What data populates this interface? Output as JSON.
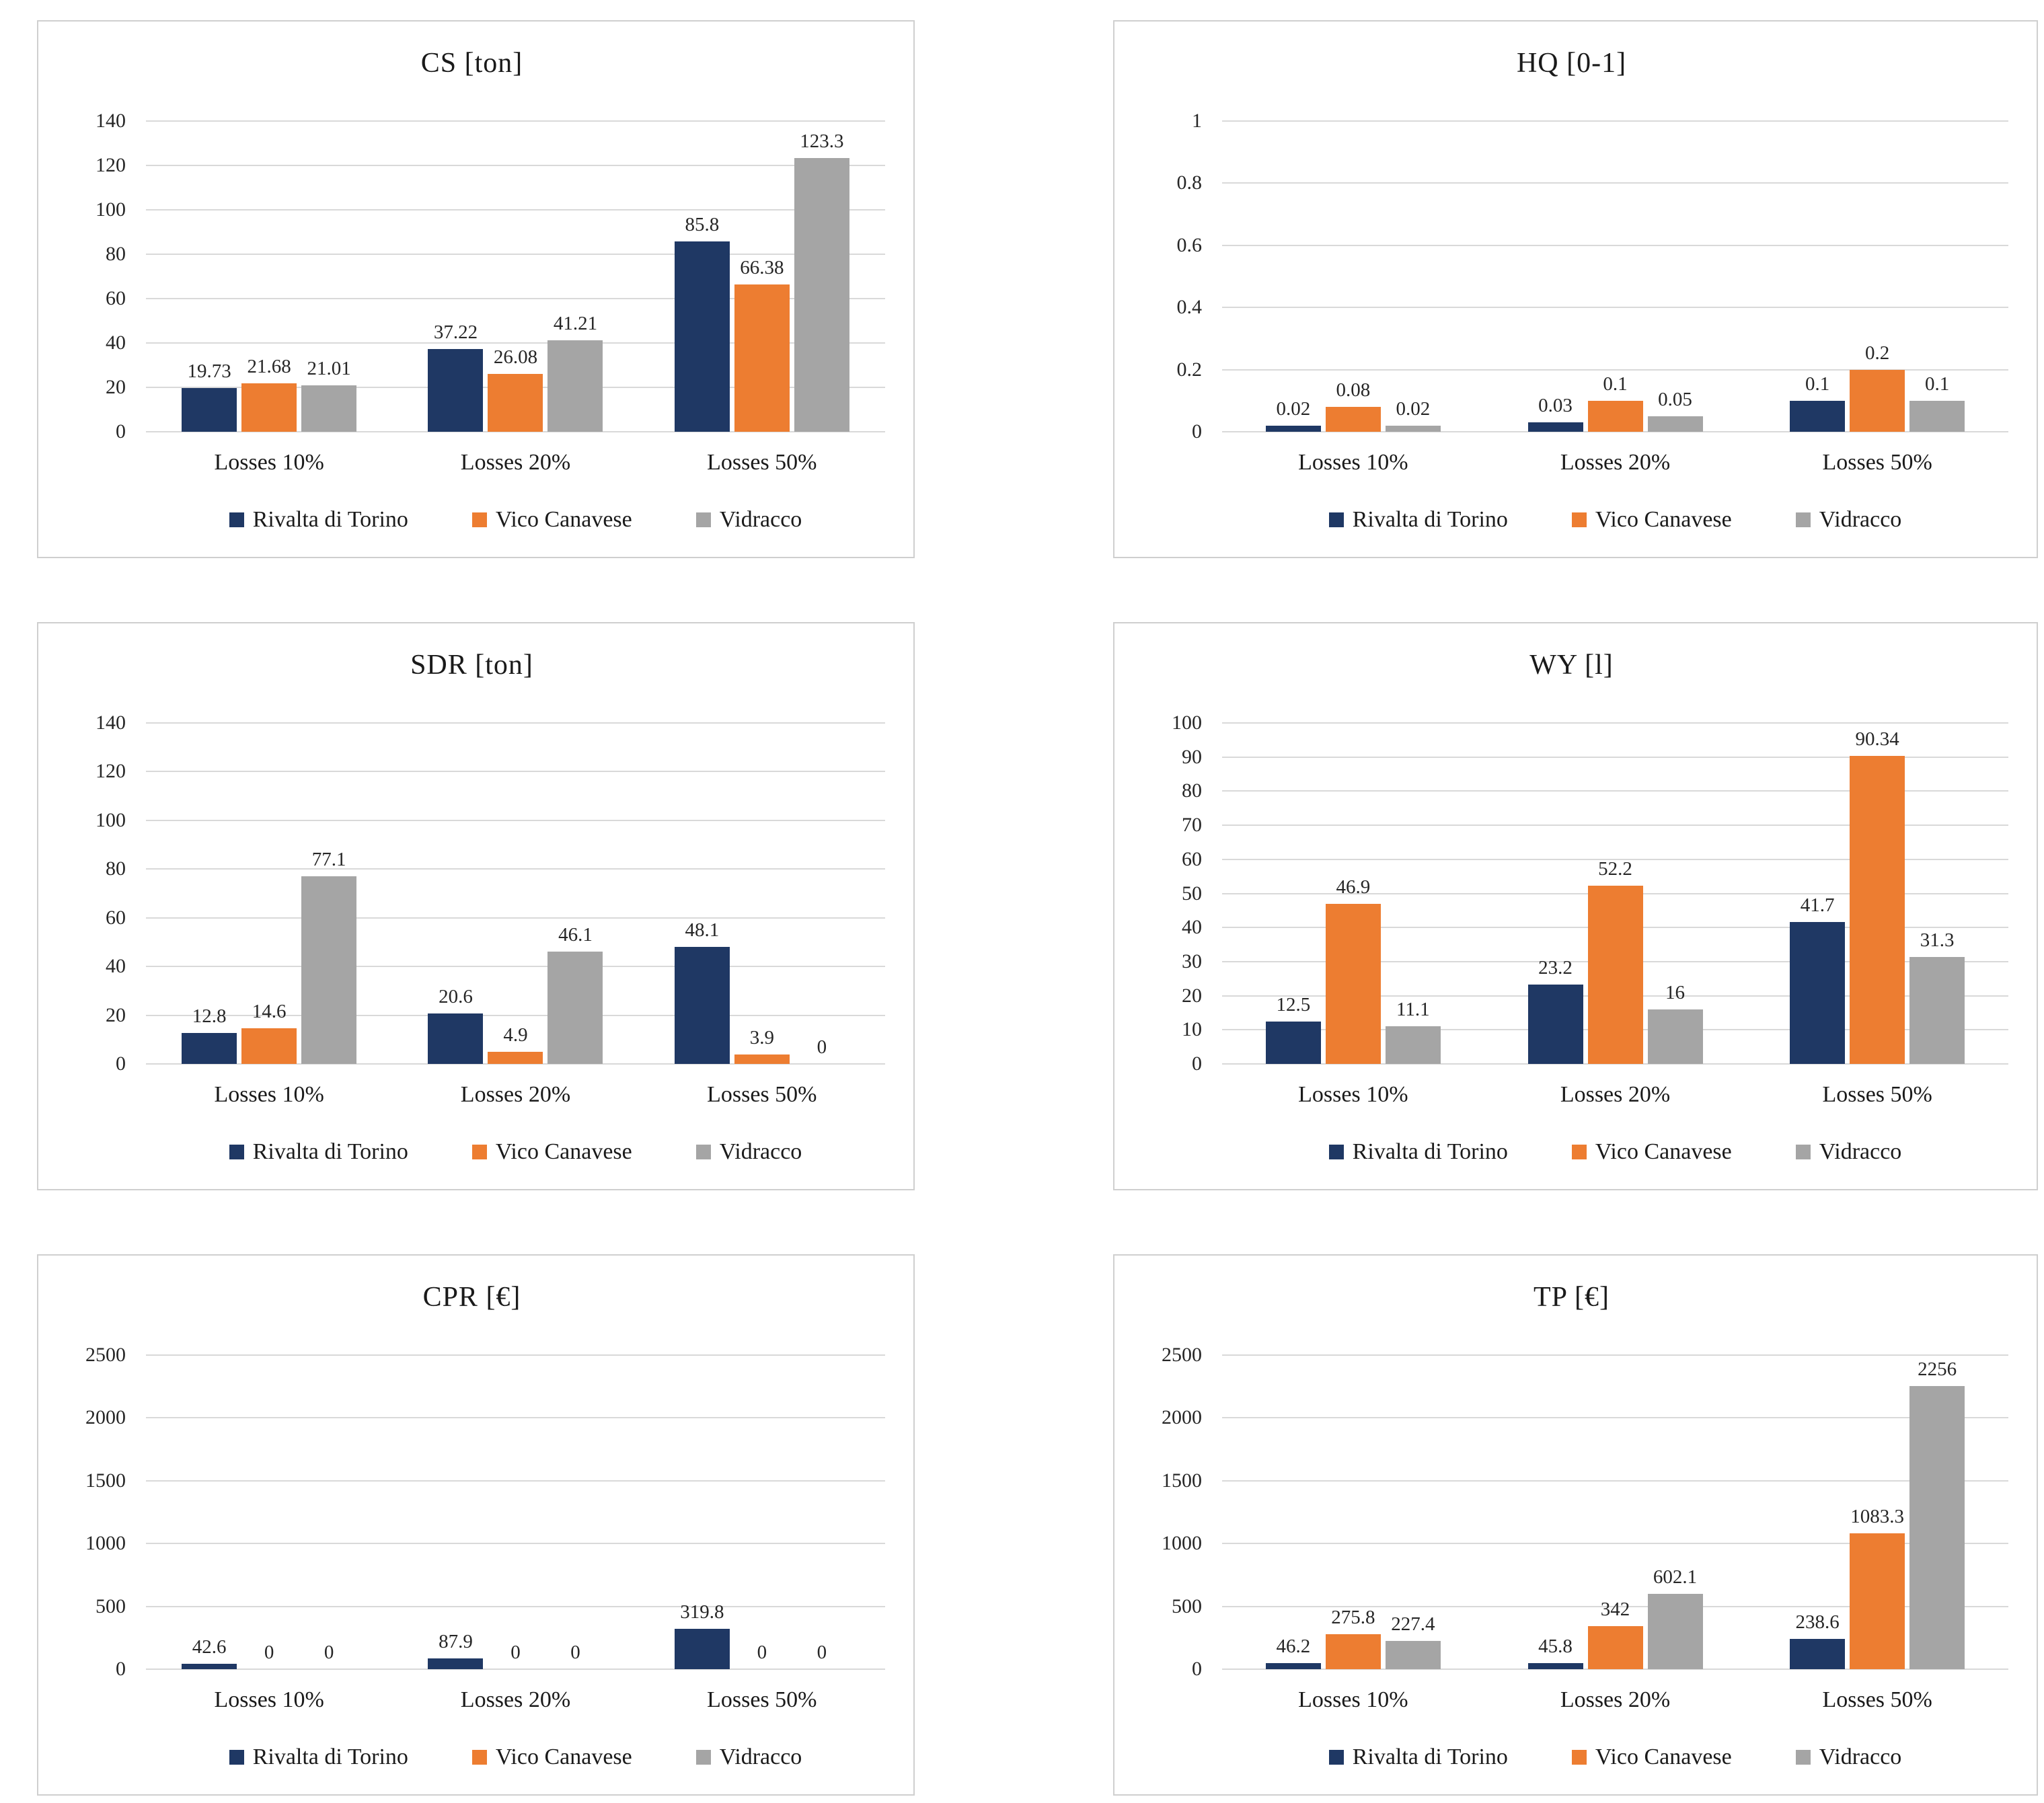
{
  "page": {
    "background": "#ffffff"
  },
  "palette": {
    "series_colors": [
      "#1F3864",
      "#ED7D31",
      "#A5A5A5"
    ],
    "gridline": "#D9D9D9",
    "card_border": "#CFCFCF",
    "text": "#262626"
  },
  "chart_data": [
    {
      "type": "bar",
      "title": "CS [ton]",
      "categories": [
        "Losses 10%",
        "Losses 20%",
        "Losses 50%"
      ],
      "series": [
        {
          "name": "Rivalta di Torino",
          "values": [
            "19.73",
            "37.22",
            "85.8"
          ]
        },
        {
          "name": "Vico Canavese",
          "values": [
            "21.68",
            "26.08",
            "66.38"
          ]
        },
        {
          "name": "Vidracco",
          "values": [
            "21.01",
            "41.21",
            "123.3"
          ]
        }
      ],
      "ylim": [
        0,
        140
      ],
      "yticks": [
        "0",
        "20",
        "40",
        "60",
        "80",
        "100",
        "120",
        "140"
      ],
      "grid": true,
      "legend_position": "bottom"
    },
    {
      "type": "bar",
      "title": "HQ [0-1]",
      "categories": [
        "Losses 10%",
        "Losses 20%",
        "Losses 50%"
      ],
      "series": [
        {
          "name": "Rivalta di Torino",
          "values": [
            "0.02",
            "0.03",
            "0.1"
          ]
        },
        {
          "name": "Vico Canavese",
          "values": [
            "0.08",
            "0.1",
            "0.2"
          ]
        },
        {
          "name": "Vidracco",
          "values": [
            "0.02",
            "0.05",
            "0.1"
          ]
        }
      ],
      "ylim": [
        0,
        1
      ],
      "yticks": [
        "0",
        "0.2",
        "0.4",
        "0.6",
        "0.8",
        "1"
      ],
      "grid": true,
      "legend_position": "bottom"
    },
    {
      "type": "bar",
      "title": "SDR [ton]",
      "categories": [
        "Losses 10%",
        "Losses 20%",
        "Losses 50%"
      ],
      "series": [
        {
          "name": "Rivalta di Torino",
          "values": [
            "12.8",
            "20.6",
            "48.1"
          ]
        },
        {
          "name": "Vico Canavese",
          "values": [
            "14.6",
            "4.9",
            "3.9"
          ]
        },
        {
          "name": "Vidracco",
          "values": [
            "77.1",
            "46.1",
            "0"
          ]
        }
      ],
      "ylim": [
        0,
        140
      ],
      "yticks": [
        "0",
        "20",
        "40",
        "60",
        "80",
        "100",
        "120",
        "140"
      ],
      "grid": true,
      "legend_position": "bottom"
    },
    {
      "type": "bar",
      "title": "WY [l]",
      "categories": [
        "Losses 10%",
        "Losses 20%",
        "Losses 50%"
      ],
      "series": [
        {
          "name": "Rivalta di Torino",
          "values": [
            "12.5",
            "23.2",
            "41.7"
          ]
        },
        {
          "name": "Vico Canavese",
          "values": [
            "46.9",
            "52.2",
            "90.34"
          ]
        },
        {
          "name": "Vidracco",
          "values": [
            "11.1",
            "16",
            "31.3"
          ]
        }
      ],
      "ylim": [
        0,
        100
      ],
      "yticks": [
        "0",
        "10",
        "20",
        "30",
        "40",
        "50",
        "60",
        "70",
        "80",
        "90",
        "100"
      ],
      "grid": true,
      "legend_position": "bottom"
    },
    {
      "type": "bar",
      "title": "CPR [€]",
      "categories": [
        "Losses 10%",
        "Losses 20%",
        "Losses 50%"
      ],
      "series": [
        {
          "name": "Rivalta di Torino",
          "values": [
            "42.6",
            "87.9",
            "319.8"
          ]
        },
        {
          "name": "Vico Canavese",
          "values": [
            "0",
            "0",
            "0"
          ]
        },
        {
          "name": "Vidracco",
          "values": [
            "0",
            "0",
            "0"
          ]
        }
      ],
      "ylim": [
        0,
        2500
      ],
      "yticks": [
        "0",
        "500",
        "1000",
        "1500",
        "2000",
        "2500"
      ],
      "grid": true,
      "legend_position": "bottom"
    },
    {
      "type": "bar",
      "title": "TP [€]",
      "categories": [
        "Losses 10%",
        "Losses 20%",
        "Losses 50%"
      ],
      "series": [
        {
          "name": "Rivalta di Torino",
          "values": [
            "46.2",
            "45.8",
            "238.6"
          ]
        },
        {
          "name": "Vico Canavese",
          "values": [
            "275.8",
            "342",
            "1083.3"
          ]
        },
        {
          "name": "Vidracco",
          "values": [
            "227.4",
            "602.1",
            "2256"
          ]
        }
      ],
      "ylim": [
        0,
        2500
      ],
      "yticks": [
        "0",
        "500",
        "1000",
        "1500",
        "2000",
        "2500"
      ],
      "grid": true,
      "legend_position": "bottom"
    }
  ]
}
